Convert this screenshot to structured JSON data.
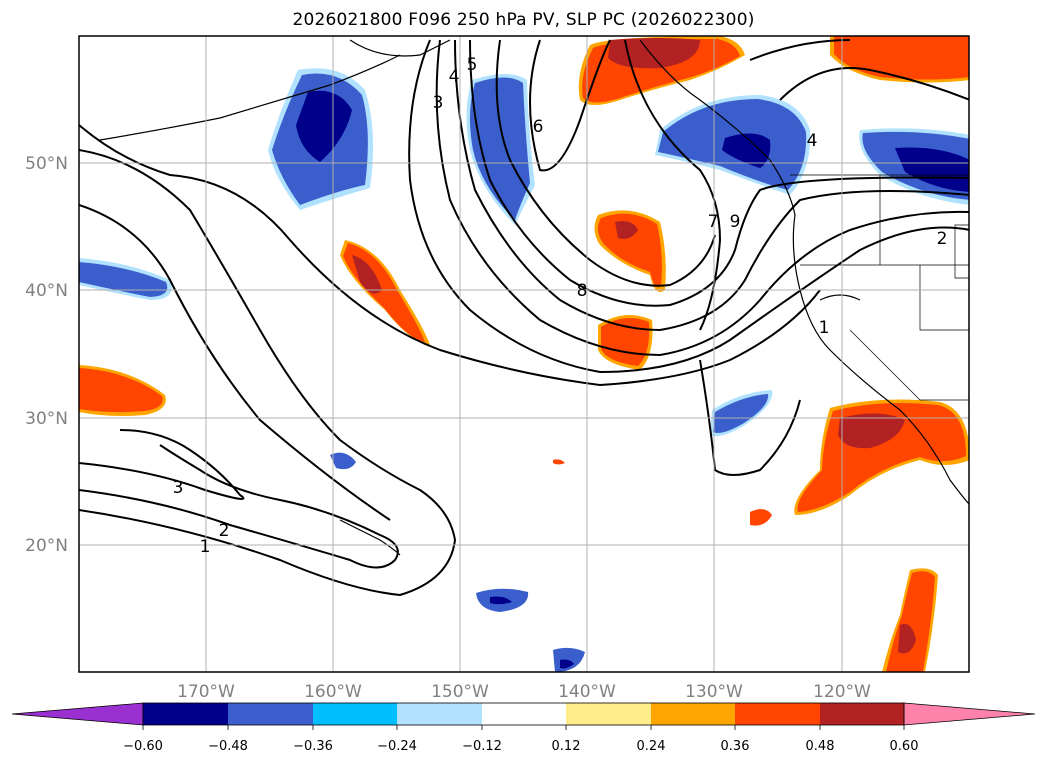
{
  "title": "2026021800 F096 250 hPa PV, SLP PC (2026022300)",
  "map": {
    "lon_range": [
      -180,
      -110
    ],
    "lat_range": [
      10,
      60
    ],
    "lat_labels": [
      "50°N",
      "40°N",
      "30°N",
      "20°N"
    ],
    "lon_labels": [
      "170°W",
      "160°W",
      "150°W",
      "140°W",
      "130°W",
      "120°W"
    ],
    "grid": true
  },
  "contour_labels": [
    "1",
    "2",
    "3",
    "3",
    "4",
    "5",
    "6",
    "7",
    "9",
    "8",
    "4",
    "2",
    "1"
  ],
  "colorbar": {
    "colors": [
      "#9b30d0",
      "#00008b",
      "#3a5fcd",
      "#00bfff",
      "#b0e2ff",
      "#ffffff",
      "#ffec8b",
      "#ffa500",
      "#ff4500",
      "#b22222",
      "#ff82ab"
    ],
    "tick_labels": [
      "−0.60",
      "−0.48",
      "−0.36",
      "−0.24",
      "−0.12",
      "0.12",
      "0.24",
      "0.36",
      "0.48",
      "0.60"
    ],
    "extend": "both"
  }
}
